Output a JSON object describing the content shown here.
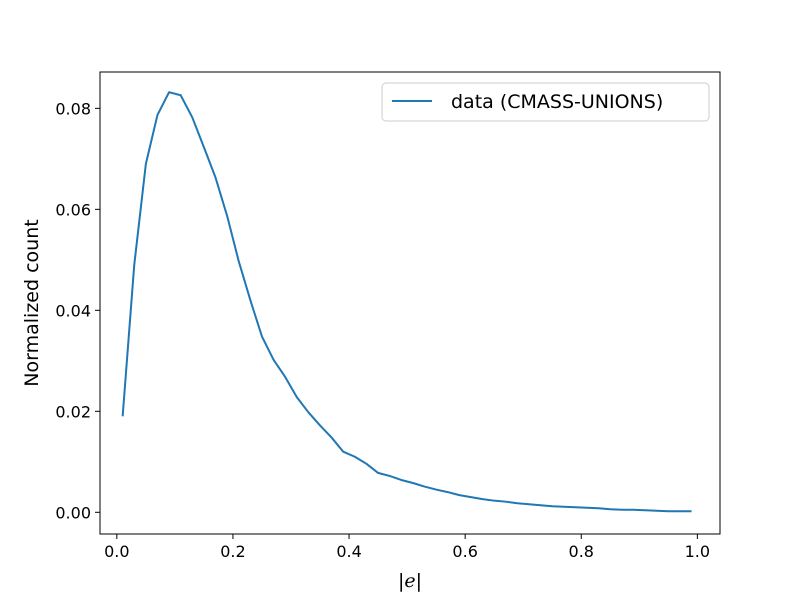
{
  "chart_data": {
    "type": "line",
    "title": "",
    "xlabel": "|e|",
    "ylabel": "Normalized count",
    "xlim": [
      -0.029,
      1.039
    ],
    "ylim": [
      -0.0043,
      0.0872
    ],
    "xticks": [
      0.0,
      0.2,
      0.4,
      0.6,
      0.8,
      1.0
    ],
    "xtick_labels": [
      "0.0",
      "0.2",
      "0.4",
      "0.6",
      "0.8",
      "1.0"
    ],
    "yticks": [
      0.0,
      0.02,
      0.04,
      0.06,
      0.08
    ],
    "ytick_labels": [
      "0.00",
      "0.02",
      "0.04",
      "0.06",
      "0.08"
    ],
    "grid": false,
    "legend_position": "upper right",
    "line_color": "#1f77b4",
    "series": [
      {
        "name": "data (CMASS-UNIONS)",
        "x": [
          0.01,
          0.03,
          0.05,
          0.07,
          0.09,
          0.11,
          0.13,
          0.15,
          0.17,
          0.19,
          0.21,
          0.23,
          0.25,
          0.27,
          0.29,
          0.31,
          0.33,
          0.35,
          0.37,
          0.39,
          0.41,
          0.43,
          0.45,
          0.47,
          0.49,
          0.51,
          0.53,
          0.55,
          0.57,
          0.59,
          0.61,
          0.63,
          0.65,
          0.67,
          0.69,
          0.71,
          0.73,
          0.75,
          0.77,
          0.79,
          0.81,
          0.83,
          0.85,
          0.87,
          0.89,
          0.91,
          0.93,
          0.95,
          0.97,
          0.99
        ],
        "y": [
          0.019,
          0.049,
          0.069,
          0.0787,
          0.0832,
          0.0826,
          0.0782,
          0.0723,
          0.0663,
          0.0587,
          0.0497,
          0.042,
          0.0348,
          0.0302,
          0.0268,
          0.0228,
          0.0198,
          0.0172,
          0.0148,
          0.012,
          0.011,
          0.0096,
          0.0078,
          0.0072,
          0.0064,
          0.0058,
          0.0051,
          0.0045,
          0.004,
          0.0034,
          0.003,
          0.0026,
          0.0023,
          0.0021,
          0.0018,
          0.0016,
          0.0014,
          0.0012,
          0.0011,
          0.001,
          0.0009,
          0.0008,
          0.0006,
          0.0005,
          0.0005,
          0.0004,
          0.0003,
          0.0002,
          0.0002,
          0.0002
        ]
      }
    ]
  }
}
